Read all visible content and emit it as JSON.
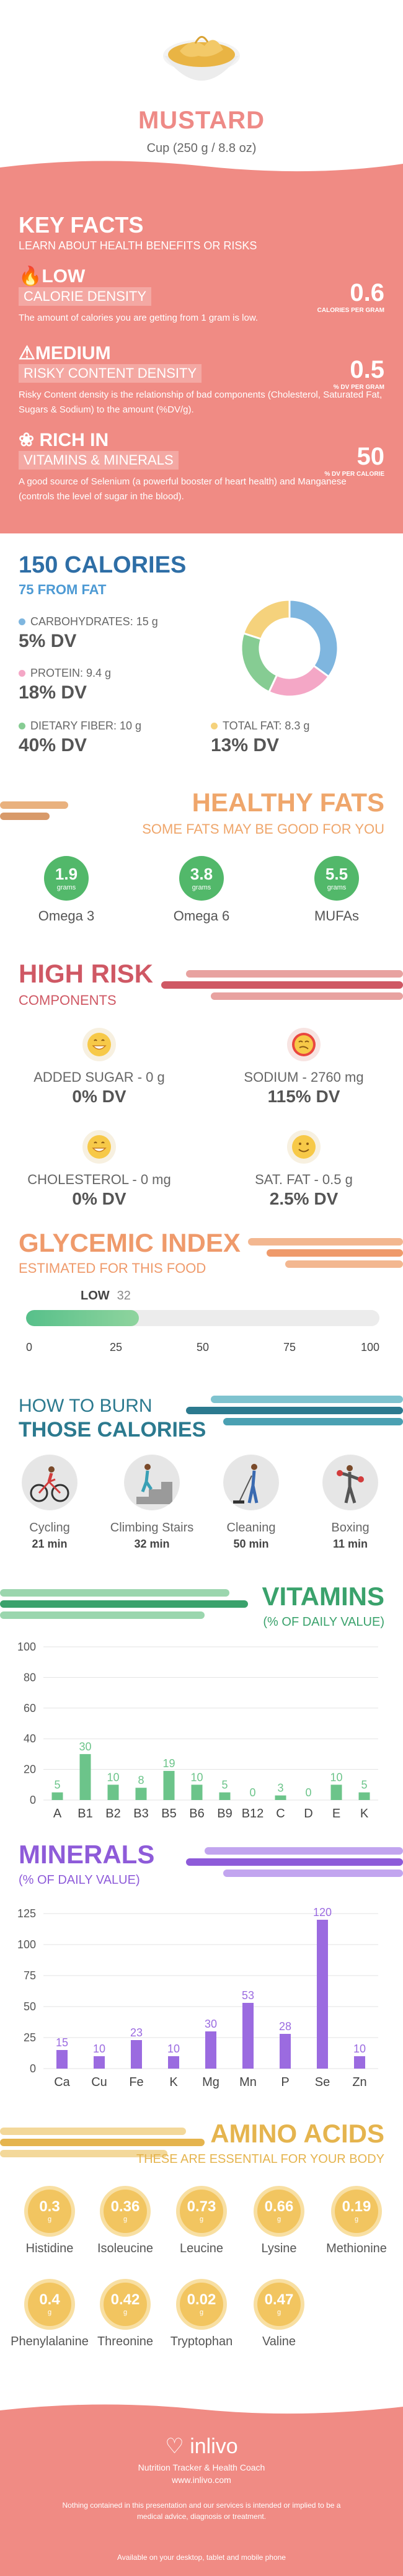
{
  "hero": {
    "title": "MUSTARD",
    "serving": "Cup (250 g / 8.8 oz)"
  },
  "key_facts": {
    "title": "KEY FACTS",
    "subtitle": "LEARN ABOUT HEALTH BENEFITS OR RISKS",
    "items": [
      {
        "level": "LOW",
        "label": "CALORIE DENSITY",
        "desc": "The amount of calories you are getting from 1 gram is low.",
        "value": "0.6",
        "unit": "CALORIES PER GRAM",
        "icon": "flame-icon"
      },
      {
        "level": "MEDIUM",
        "label": "RISKY CONTENT DENSITY",
        "desc": "Risky Content density is the relationship of bad components (Cholesterol, Saturated Fat, Sugars & Sodium) to the amount (%DV/g).",
        "value": "0.5",
        "unit": "% DV PER GRAM",
        "icon": "warning-icon"
      },
      {
        "level": "RICH IN",
        "label": "VITAMINS & MINERALS",
        "desc": "A good source of Selenium (a powerful booster of heart health) and Manganese (controls the level of sugar in the blood).",
        "value": "50",
        "unit": "% DV PER CALORIE",
        "icon": "leaf-icon"
      }
    ]
  },
  "calories": {
    "title": "150 CALORIES",
    "from_fat": "75 FROM FAT",
    "nutrients": [
      {
        "label": "CARBOHYDRATES: 15 g",
        "dv": "5% DV",
        "color": "#7fb6df",
        "share": 0.35
      },
      {
        "label": "PROTEIN: 9.4 g",
        "dv": "18% DV",
        "color": "#f4a7c6",
        "share": 0.22
      },
      {
        "label": "DIETARY FIBER: 10 g",
        "dv": "40% DV",
        "color": "#86cc93",
        "share": 0.23
      },
      {
        "label": "TOTAL FAT: 8.3 g",
        "dv": "13% DV",
        "color": "#f5d27c",
        "share": 0.2
      }
    ]
  },
  "healthy_fats": {
    "title": "HEALTHY FATS",
    "subtitle": "SOME FATS MAY BE GOOD FOR YOU",
    "unit": "grams",
    "items": [
      {
        "value": "1.9",
        "name": "Omega 3"
      },
      {
        "value": "3.8",
        "name": "Omega 6"
      },
      {
        "value": "5.5",
        "name": "MUFAs"
      }
    ]
  },
  "high_risk": {
    "title": "HIGH RISK",
    "subtitle": "COMPONENTS",
    "items": [
      {
        "label": "ADDED SUGAR - 0 g",
        "dv": "0% DV",
        "face": "#f7c948"
      },
      {
        "label": "SODIUM - 2760 mg",
        "dv": "115% DV",
        "face": "#e9473f"
      },
      {
        "label": "CHOLESTEROL - 0 mg",
        "dv": "0% DV",
        "face": "#f7c948"
      },
      {
        "label": "SAT. FAT - 0.5 g",
        "dv": "2.5% DV",
        "face": "#f7c948"
      }
    ]
  },
  "glycemic": {
    "title": "GLYCEMIC INDEX",
    "subtitle": "ESTIMATED FOR THIS FOOD",
    "level": "LOW",
    "value": 32,
    "ticks": [
      "0",
      "25",
      "50",
      "75",
      "100"
    ]
  },
  "burn": {
    "title1": "HOW TO BURN",
    "title2": "THOSE CALORIES",
    "activities": [
      {
        "name": "Cycling",
        "time": "21 min",
        "icon": "cycling-icon"
      },
      {
        "name": "Climbing Stairs",
        "time": "32 min",
        "icon": "stairs-icon"
      },
      {
        "name": "Cleaning",
        "time": "50 min",
        "icon": "cleaning-icon"
      },
      {
        "name": "Boxing",
        "time": "11 min",
        "icon": "boxing-icon"
      }
    ]
  },
  "vitamins": {
    "title": "VITAMINS",
    "subtitle": "(% OF DAILY VALUE)",
    "chart_data": {
      "type": "bar",
      "categories": [
        "A",
        "B1",
        "B2",
        "B3",
        "B5",
        "B6",
        "B9",
        "B12",
        "C",
        "D",
        "E",
        "K"
      ],
      "values": [
        5,
        30,
        10,
        8,
        19,
        10,
        5,
        0,
        3,
        0,
        10,
        5
      ],
      "ylim": [
        0,
        100
      ],
      "yticks": [
        "0",
        "20",
        "40",
        "60",
        "80",
        "100"
      ],
      "color": "#6cc48a"
    }
  },
  "minerals": {
    "title": "MINERALS",
    "subtitle": "(% OF DAILY VALUE)",
    "chart_data": {
      "type": "bar",
      "categories": [
        "Ca",
        "Cu",
        "Fe",
        "K",
        "Mg",
        "Mn",
        "P",
        "Se",
        "Zn"
      ],
      "values": [
        15,
        10,
        23,
        10,
        30,
        53,
        28,
        120,
        10
      ],
      "ylim": [
        0,
        125
      ],
      "yticks": [
        "0",
        "25",
        "50",
        "75",
        "100",
        "125"
      ],
      "color": "#9b6be0"
    }
  },
  "amino": {
    "title": "AMINO ACIDS",
    "subtitle": "THESE ARE ESSENTIAL FOR YOUR BODY",
    "unit": "g",
    "items": [
      {
        "value": "0.3",
        "name": "Histidine"
      },
      {
        "value": "0.36",
        "name": "Isoleucine"
      },
      {
        "value": "0.73",
        "name": "Leucine"
      },
      {
        "value": "0.66",
        "name": "Lysine"
      },
      {
        "value": "0.19",
        "name": "Methionine"
      },
      {
        "value": "0.4",
        "name": "Phenylalanine"
      },
      {
        "value": "0.42",
        "name": "Threonine"
      },
      {
        "value": "0.02",
        "name": "Tryptophan"
      },
      {
        "value": "0.47",
        "name": "Valine"
      }
    ]
  },
  "footer": {
    "brand": "inlivo",
    "tagline": "Nutrition Tracker & Health Coach",
    "url": "www.inlivo.com",
    "disclaimer": "Nothing contained in this presentation and our services is intended or implied to be a medical advice, diagnosis or treatment.",
    "available": "Available on your desktop, tablet and mobile phone"
  }
}
